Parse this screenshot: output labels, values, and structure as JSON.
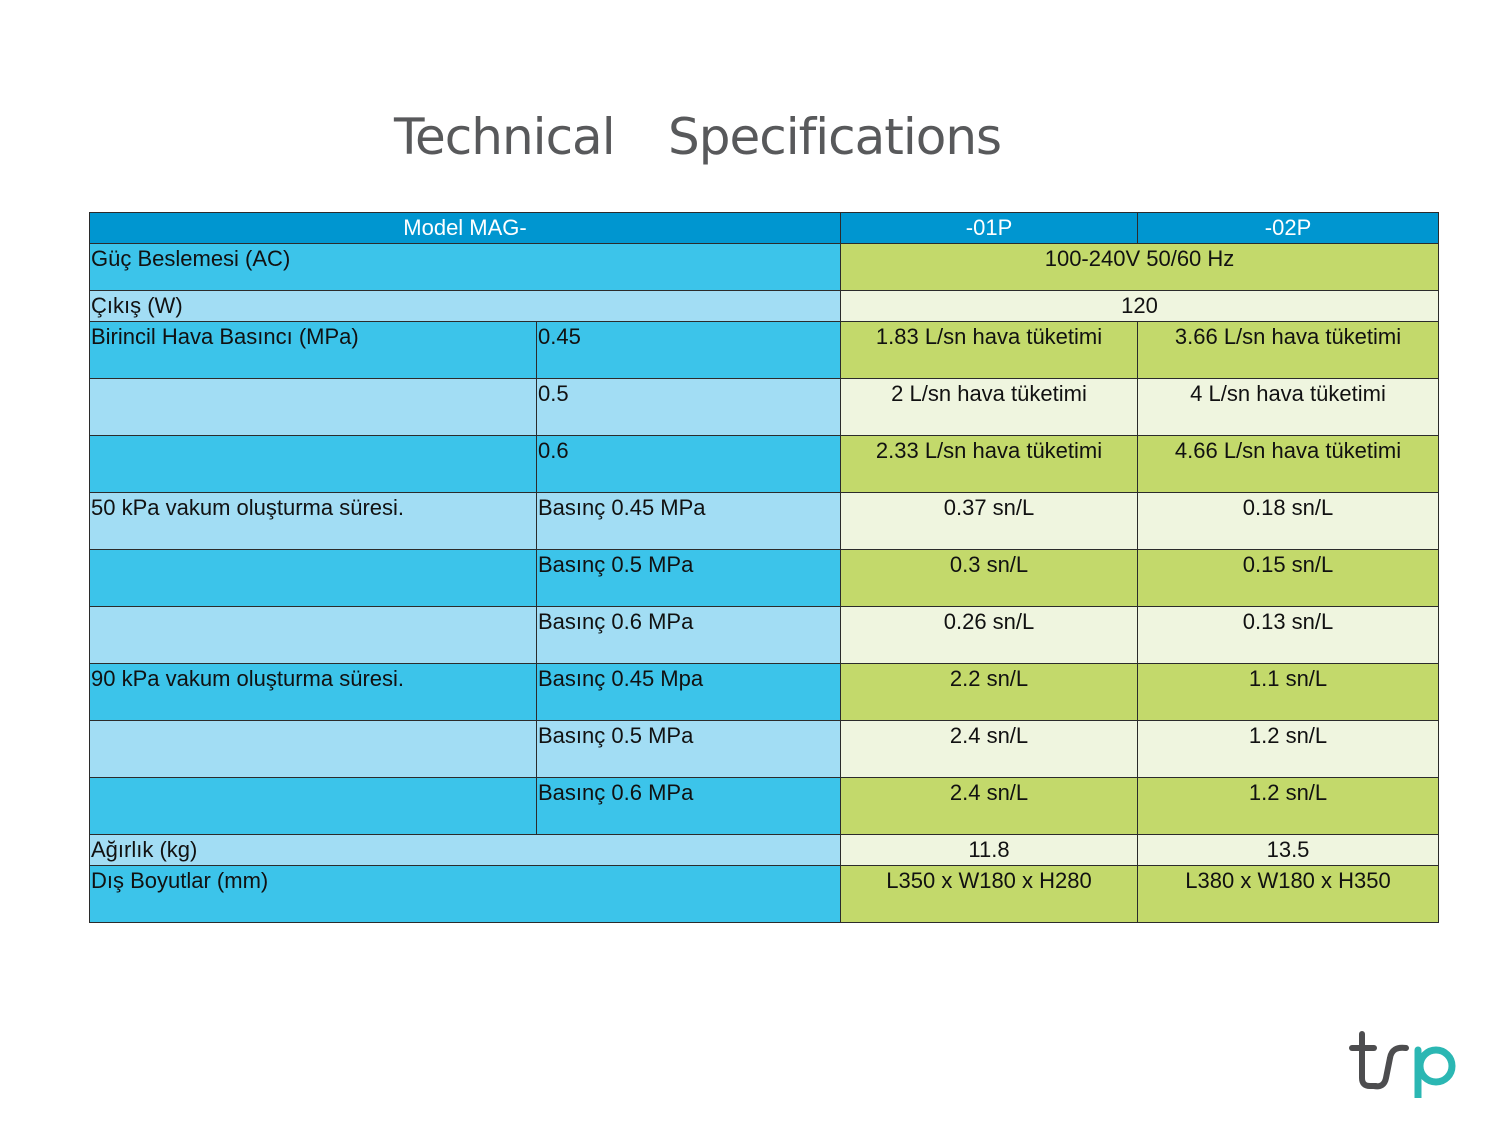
{
  "title": {
    "word1": "Technical",
    "word2": "Specifications"
  },
  "table": {
    "header": {
      "model": "Model MAG-",
      "col1": "-01P",
      "col2": "-02P"
    },
    "power": {
      "label": "Güç Beslemesi (AC)",
      "value": "100-240V 50/60 Hz"
    },
    "output": {
      "label": "Çıkış (W)",
      "value": "120"
    },
    "air_pressure": {
      "label": "Birincil Hava Basıncı (MPa)",
      "rows": [
        {
          "sub": "0.45",
          "v1": "1.83 L/sn hava tüketimi",
          "v2": "3.66 L/sn hava tüketimi"
        },
        {
          "sub": "0.5",
          "v1": "2 L/sn hava tüketimi",
          "v2": "4 L/sn hava tüketimi"
        },
        {
          "sub": "0.6",
          "v1": "2.33 L/sn hava tüketimi",
          "v2": "4.66 L/sn hava tüketimi"
        }
      ]
    },
    "vac50": {
      "label": "50 kPa vakum oluşturma süresi.",
      "rows": [
        {
          "sub": "Basınç 0.45 MPa",
          "v1": "0.37 sn/L",
          "v2": "0.18 sn/L"
        },
        {
          "sub": "Basınç 0.5 MPa",
          "v1": "0.3 sn/L",
          "v2": "0.15 sn/L"
        },
        {
          "sub": "Basınç 0.6 MPa",
          "v1": "0.26 sn/L",
          "v2": "0.13 sn/L"
        }
      ]
    },
    "vac90": {
      "label": "90 kPa vakum oluşturma süresi.",
      "rows": [
        {
          "sub": "Basınç 0.45 Mpa",
          "v1": "2.2 sn/L",
          "v2": "1.1 sn/L"
        },
        {
          "sub": "Basınç 0.5 MPa",
          "v1": "2.4 sn/L",
          "v2": "1.2 sn/L"
        },
        {
          "sub": "Basınç 0.6 MPa",
          "v1": "2.4 sn/L",
          "v2": "1.2 sn/L"
        }
      ]
    },
    "weight": {
      "label": "Ağırlık (kg)",
      "v1": "11.8",
      "v2": "13.5"
    },
    "dimensions": {
      "label": "Dış Boyutlar (mm)",
      "v1": "L350 x W180 x H280",
      "v2": "L380 x W180 x H350"
    }
  },
  "logo": {
    "text": "tsp",
    "colors": {
      "ts": "#4d4d4f",
      "p": "#2bb7b3"
    }
  },
  "colors": {
    "header_blue": "#0096d0",
    "label_dark": "#3cc4ea",
    "label_light": "#a2ddf4",
    "value_green": "#c3d96b",
    "value_light": "#eff5df",
    "title_gray": "#58595b"
  }
}
